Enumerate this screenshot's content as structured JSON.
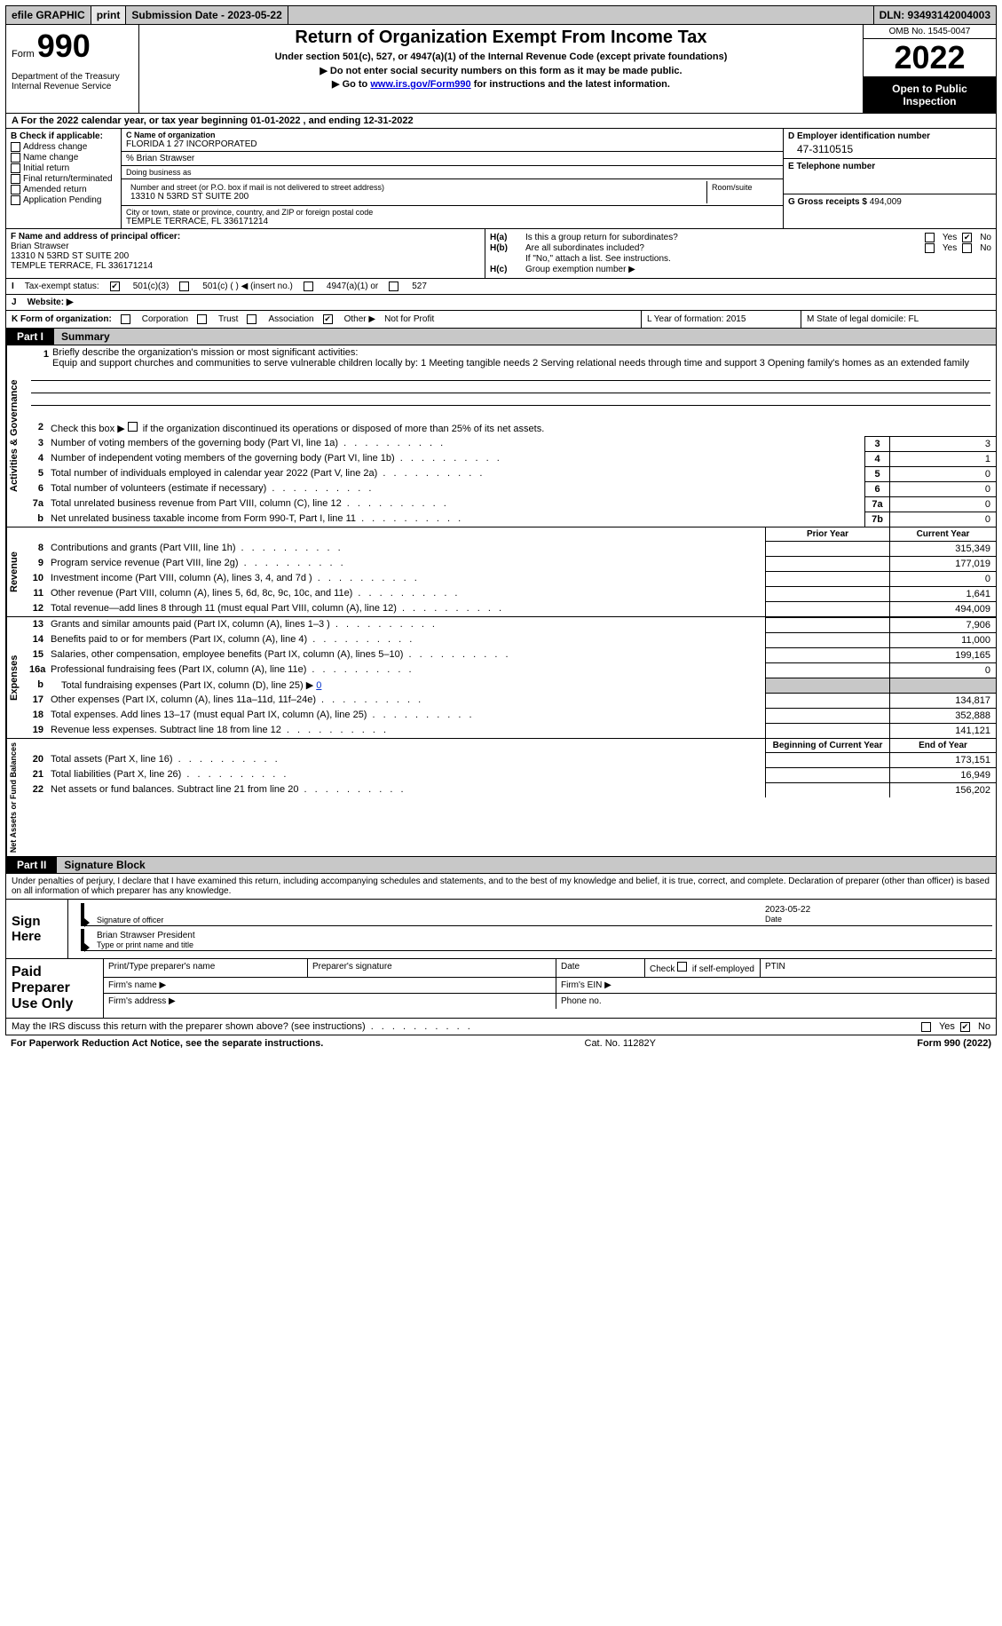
{
  "topbar": {
    "efile": "efile GRAPHIC",
    "print": "print",
    "sub_date_label": "Submission Date - 2023-05-22",
    "dln": "DLN: 93493142004003"
  },
  "header": {
    "form_word": "Form",
    "form_num": "990",
    "dept": "Department of the Treasury",
    "irs": "Internal Revenue Service",
    "main_title": "Return of Organization Exempt From Income Tax",
    "subtitle": "Under section 501(c), 527, or 4947(a)(1) of the Internal Revenue Code (except private foundations)",
    "instr1": "▶ Do not enter social security numbers on this form as it may be made public.",
    "instr2_pre": "▶ Go to ",
    "instr2_link": "www.irs.gov/Form990",
    "instr2_post": " for instructions and the latest information.",
    "omb": "OMB No. 1545-0047",
    "year": "2022",
    "open_pub": "Open to Public Inspection"
  },
  "row_a": "A For the 2022 calendar year, or tax year beginning 01-01-2022    , and ending 12-31-2022",
  "col_b": {
    "label": "B Check if applicable:",
    "items": [
      "Address change",
      "Name change",
      "Initial return",
      "Final return/terminated",
      "Amended return",
      "Application Pending"
    ]
  },
  "col_c": {
    "name_label": "C Name of organization",
    "name": "FLORIDA 1 27 INCORPORATED",
    "care_of": "% Brian Strawser",
    "dba_label": "Doing business as",
    "street_label": "Number and street (or P.O. box if mail is not delivered to street address)",
    "room_label": "Room/suite",
    "street": "13310 N 53RD ST SUITE 200",
    "city_label": "City or town, state or province, country, and ZIP or foreign postal code",
    "city": "TEMPLE TERRACE, FL  336171214"
  },
  "col_de": {
    "d_label": "D Employer identification number",
    "d_val": "47-3110515",
    "e_label": "E Telephone number",
    "g_label": "G Gross receipts $",
    "g_val": "494,009"
  },
  "col_f": {
    "label": "F Name and address of principal officer:",
    "name": "Brian Strawser",
    "street": "13310 N 53RD ST SUITE 200",
    "city": "TEMPLE TERRACE, FL  336171214"
  },
  "col_h": {
    "ha": "H(a)",
    "ha_text": "Is this a group return for subordinates?",
    "hb": "H(b)",
    "hb_text": "Are all subordinates included?",
    "hb_note": "If \"No,\" attach a list. See instructions.",
    "hc": "H(c)",
    "hc_text": "Group exemption number ▶",
    "yes": "Yes",
    "no": "No"
  },
  "row_i": {
    "label": "I",
    "text": "Tax-exempt status:",
    "opt1": "501(c)(3)",
    "opt2": "501(c) (   ) ◀ (insert no.)",
    "opt3": "4947(a)(1) or",
    "opt4": "527"
  },
  "row_j": {
    "label": "J",
    "text": "Website: ▶"
  },
  "row_k": {
    "label": "K Form of organization:",
    "opts": [
      "Corporation",
      "Trust",
      "Association",
      "Other ▶"
    ],
    "other_text": "Not for Profit",
    "l": "L Year of formation: 2015",
    "m": "M State of legal domicile: FL"
  },
  "part1": {
    "label": "Part I",
    "title": "Summary"
  },
  "sections": {
    "ag": "Activities & Governance",
    "rev": "Revenue",
    "exp": "Expenses",
    "na": "Net Assets or Fund Balances"
  },
  "mission": {
    "num": "1",
    "label": "Briefly describe the organization's mission or most significant activities:",
    "text": "Equip and support churches and communities to serve vulnerable children locally by: 1 Meeting tangible needs 2 Serving relational needs through time and support 3 Opening family's homes as an extended family"
  },
  "line2": {
    "num": "2",
    "text": "Check this box ▶",
    "text2": "if the organization discontinued its operations or disposed of more than 25% of its net assets."
  },
  "lines_ag": [
    {
      "n": "3",
      "t": "Number of voting members of the governing body (Part VI, line 1a)",
      "box": "3",
      "v": "3"
    },
    {
      "n": "4",
      "t": "Number of independent voting members of the governing body (Part VI, line 1b)",
      "box": "4",
      "v": "1"
    },
    {
      "n": "5",
      "t": "Total number of individuals employed in calendar year 2022 (Part V, line 2a)",
      "box": "5",
      "v": "0"
    },
    {
      "n": "6",
      "t": "Total number of volunteers (estimate if necessary)",
      "box": "6",
      "v": "0"
    },
    {
      "n": "7a",
      "t": "Total unrelated business revenue from Part VIII, column (C), line 12",
      "box": "7a",
      "v": "0"
    },
    {
      "n": "b",
      "t": "Net unrelated business taxable income from Form 990-T, Part I, line 11",
      "box": "7b",
      "v": "0"
    }
  ],
  "year_headers": {
    "prior": "Prior Year",
    "curr": "Current Year"
  },
  "lines_rev": [
    {
      "n": "8",
      "t": "Contributions and grants (Part VIII, line 1h)",
      "p": "",
      "c": "315,349"
    },
    {
      "n": "9",
      "t": "Program service revenue (Part VIII, line 2g)",
      "p": "",
      "c": "177,019"
    },
    {
      "n": "10",
      "t": "Investment income (Part VIII, column (A), lines 3, 4, and 7d )",
      "p": "",
      "c": "0"
    },
    {
      "n": "11",
      "t": "Other revenue (Part VIII, column (A), lines 5, 6d, 8c, 9c, 10c, and 11e)",
      "p": "",
      "c": "1,641"
    },
    {
      "n": "12",
      "t": "Total revenue—add lines 8 through 11 (must equal Part VIII, column (A), line 12)",
      "p": "",
      "c": "494,009"
    }
  ],
  "lines_exp": [
    {
      "n": "13",
      "t": "Grants and similar amounts paid (Part IX, column (A), lines 1–3 )",
      "p": "",
      "c": "7,906"
    },
    {
      "n": "14",
      "t": "Benefits paid to or for members (Part IX, column (A), line 4)",
      "p": "",
      "c": "11,000"
    },
    {
      "n": "15",
      "t": "Salaries, other compensation, employee benefits (Part IX, column (A), lines 5–10)",
      "p": "",
      "c": "199,165"
    },
    {
      "n": "16a",
      "t": "Professional fundraising fees (Part IX, column (A), line 11e)",
      "p": "",
      "c": "0"
    }
  ],
  "line_16b": {
    "n": "b",
    "t": "Total fundraising expenses (Part IX, column (D), line 25) ▶",
    "v": "0"
  },
  "lines_exp2": [
    {
      "n": "17",
      "t": "Other expenses (Part IX, column (A), lines 11a–11d, 11f–24e)",
      "p": "",
      "c": "134,817"
    },
    {
      "n": "18",
      "t": "Total expenses. Add lines 13–17 (must equal Part IX, column (A), line 25)",
      "p": "",
      "c": "352,888"
    },
    {
      "n": "19",
      "t": "Revenue less expenses. Subtract line 18 from line 12",
      "p": "",
      "c": "141,121"
    }
  ],
  "year_headers2": {
    "prior": "Beginning of Current Year",
    "curr": "End of Year"
  },
  "lines_na": [
    {
      "n": "20",
      "t": "Total assets (Part X, line 16)",
      "p": "",
      "c": "173,151"
    },
    {
      "n": "21",
      "t": "Total liabilities (Part X, line 26)",
      "p": "",
      "c": "16,949"
    },
    {
      "n": "22",
      "t": "Net assets or fund balances. Subtract line 21 from line 20",
      "p": "",
      "c": "156,202"
    }
  ],
  "part2": {
    "label": "Part II",
    "title": "Signature Block"
  },
  "sig_intro": "Under penalties of perjury, I declare that I have examined this return, including accompanying schedules and statements, and to the best of my knowledge and belief, it is true, correct, and complete. Declaration of preparer (other than officer) is based on all information of which preparer has any knowledge.",
  "sign": {
    "label": "Sign Here",
    "sig_cap": "Signature of officer",
    "date": "2023-05-22",
    "date_cap": "Date",
    "name": "Brian Strawser  President",
    "name_cap": "Type or print name and title"
  },
  "prep": {
    "label": "Paid Preparer Use Only",
    "col1": "Print/Type preparer's name",
    "col2": "Preparer's signature",
    "col3": "Date",
    "col4_pre": "Check",
    "col4_post": "if self-employed",
    "col5": "PTIN",
    "firm_name": "Firm's name    ▶",
    "firm_ein": "Firm's EIN ▶",
    "firm_addr": "Firm's address ▶",
    "phone": "Phone no."
  },
  "discuss": {
    "text": "May the IRS discuss this return with the preparer shown above? (see instructions)",
    "yes": "Yes",
    "no": "No"
  },
  "footer": {
    "left": "For Paperwork Reduction Act Notice, see the separate instructions.",
    "mid": "Cat. No. 11282Y",
    "right": "Form 990 (2022)"
  }
}
